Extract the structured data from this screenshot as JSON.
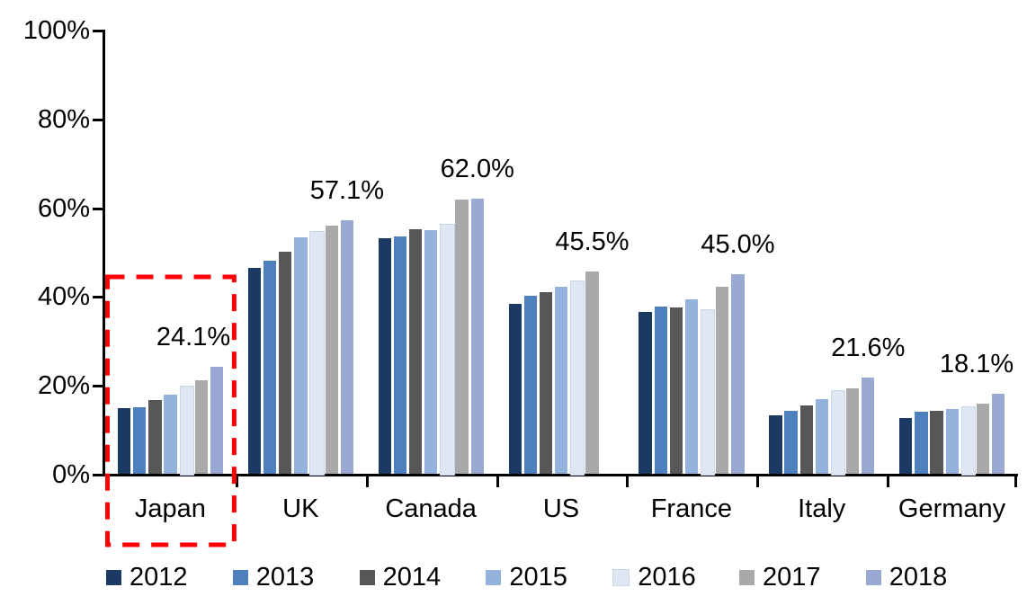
{
  "chart_data": {
    "type": "bar",
    "title": "",
    "xlabel": "",
    "ylabel": "",
    "unit": "%",
    "categories": [
      "Japan",
      "UK",
      "Canada",
      "US",
      "France",
      "Italy",
      "Germany"
    ],
    "series": [
      {
        "name": "2012",
        "color": "#1B3A63",
        "values": [
          14.8,
          46.3,
          53.0,
          38.2,
          36.4,
          13.2,
          12.5
        ]
      },
      {
        "name": "2013",
        "color": "#4E80BD",
        "values": [
          15.0,
          47.9,
          53.5,
          40.0,
          37.6,
          14.1,
          13.9
        ]
      },
      {
        "name": "2014",
        "color": "#575757",
        "values": [
          16.5,
          49.9,
          55.1,
          40.9,
          37.5,
          15.3,
          14.2
        ]
      },
      {
        "name": "2015",
        "color": "#94B3DC",
        "values": [
          17.8,
          53.2,
          54.9,
          42.2,
          39.2,
          16.8,
          14.6
        ]
      },
      {
        "name": "2016",
        "color": "#DEE7F2",
        "border": "#C9D6EA",
        "values": [
          19.8,
          54.7,
          56.2,
          43.5,
          37.1,
          18.9,
          15.2
        ]
      },
      {
        "name": "2017",
        "color": "#A9A9A9",
        "values": [
          21.0,
          55.8,
          61.7,
          45.5,
          42.2,
          19.2,
          15.8
        ]
      },
      {
        "name": "2018",
        "color": "#99A9D2",
        "values": [
          24.1,
          57.1,
          62.0,
          null,
          45.0,
          21.6,
          18.1
        ]
      }
    ],
    "annotations": [
      {
        "category": "Japan",
        "text": "24.1%"
      },
      {
        "category": "UK",
        "text": "57.1%"
      },
      {
        "category": "Canada",
        "text": "62.0%"
      },
      {
        "category": "US",
        "text": "45.5%"
      },
      {
        "category": "France",
        "text": "45.0%"
      },
      {
        "category": "Italy",
        "text": "21.6%"
      },
      {
        "category": "Germany",
        "text": "18.1%"
      }
    ],
    "y_axis": {
      "min": 0,
      "max": 100,
      "tick_step": 20,
      "tick_labels": [
        "0%",
        "20%",
        "40%",
        "60%",
        "80%",
        "100%"
      ]
    },
    "legend": {
      "position": "bottom",
      "entries": [
        "2012",
        "2013",
        "2014",
        "2015",
        "2016",
        "2017",
        "2018"
      ]
    },
    "grid": "off",
    "highlight": {
      "category": "Japan",
      "shape": "dashed-box",
      "color": "#FF0000"
    }
  }
}
